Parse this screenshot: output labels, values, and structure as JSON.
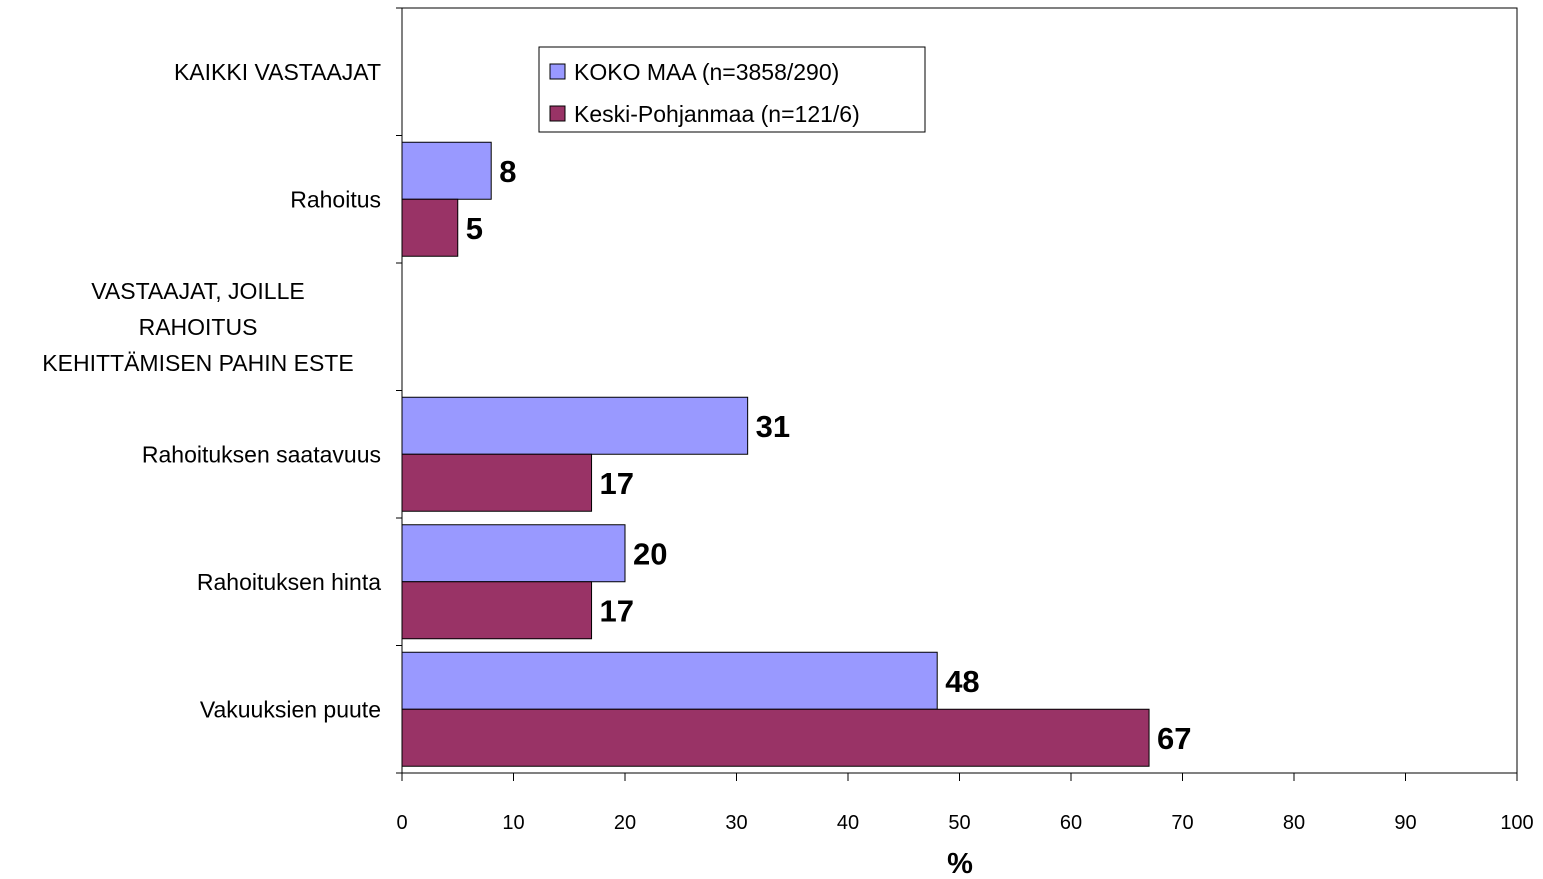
{
  "chart_data": {
    "type": "bar",
    "orientation": "horizontal",
    "categories": [
      "KAIKKI VASTAAJAT",
      "Rahoitus",
      "VASTAAJAT, JOILLE\nRAHOITUS\nKEHITTÄMISEN PAHIN ESTE",
      "Rahoituksen saatavuus",
      "Rahoituksen hinta",
      "Vakuuksien puute"
    ],
    "series": [
      {
        "name": "KOKO MAA (n=3858/290)",
        "color": "#9999ff",
        "values": [
          null,
          8,
          null,
          31,
          20,
          48
        ]
      },
      {
        "name": "Keski-Pohjanmaa (n=121/6)",
        "color": "#993366",
        "values": [
          null,
          5,
          null,
          17,
          17,
          67
        ]
      }
    ],
    "xlabel": "%",
    "ylabel": "",
    "xlim": [
      0,
      100
    ],
    "xticks": [
      0,
      10,
      20,
      30,
      40,
      50,
      60,
      70,
      80,
      90,
      100
    ],
    "grid": false,
    "legend_position": "top-left",
    "data_labels": true
  }
}
